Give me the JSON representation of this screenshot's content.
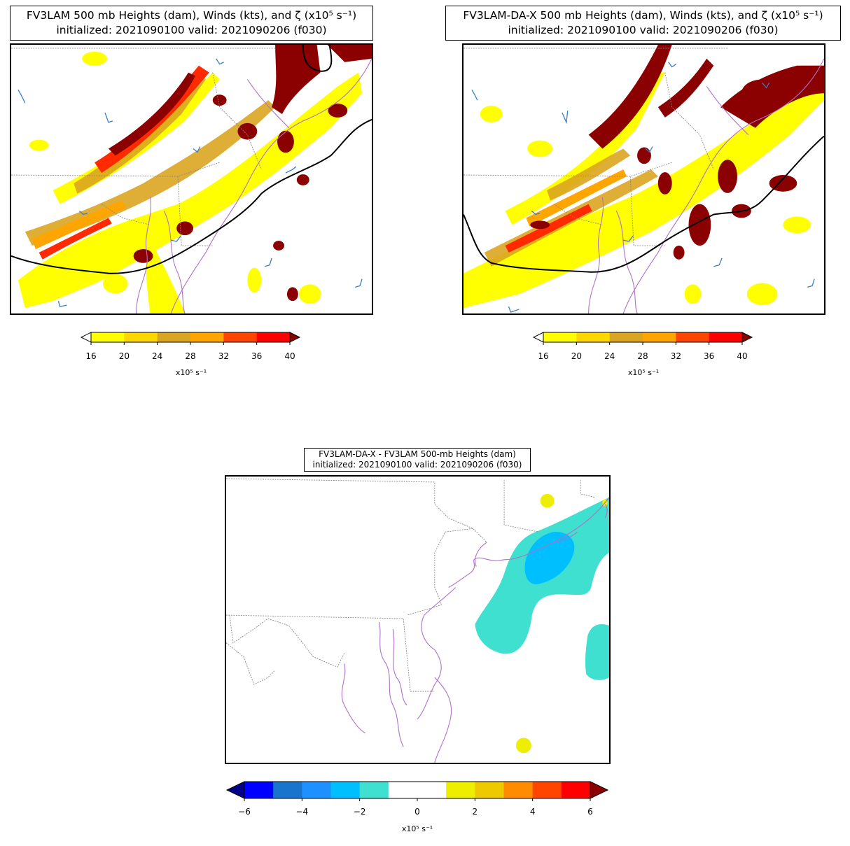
{
  "panels": [
    {
      "title_line1": "FV3LAM 500 mb Heights (dam), Winds (kts), and ζ (x10⁵ s⁻¹)",
      "title_line2": "initialized: 2021090100 valid: 2021090206 (f030)"
    },
    {
      "title_line1": "FV3LAM-DA-X 500 mb Heights (dam), Winds (kts), and ζ (x10⁵ s⁻¹)",
      "title_line2": "initialized: 2021090100 valid: 2021090206 (f030)"
    },
    {
      "title_line1": "FV3LAM-DA-X - FV3LAM 500-mb Heights (dam)",
      "title_line2": "initialized: 2021090100 valid: 2021090206 (f030)"
    }
  ],
  "vorticity_colorbar": {
    "ticks": [
      "16",
      "20",
      "24",
      "28",
      "32",
      "36",
      "40"
    ],
    "unit": "x10⁵ s⁻¹",
    "colors": [
      "#ffff00",
      "#ffd700",
      "#daa520",
      "#ffa500",
      "#ff4500",
      "#ff0000"
    ],
    "under_color": "#ffffff",
    "over_color": "#8b0000"
  },
  "diff_colorbar": {
    "ticks": [
      "−6",
      "−4",
      "−2",
      "0",
      "2",
      "4",
      "6"
    ],
    "unit": "x10⁵ s⁻¹",
    "colors": [
      "#0000ff",
      "#1874cd",
      "#1e90ff",
      "#00bfff",
      "#40e0d0",
      "#ffffff",
      "#ffffff",
      "#eeee00",
      "#eec900",
      "#ff8c00",
      "#ff4500",
      "#ff0000"
    ],
    "under_color": "#00008b",
    "over_color": "#8b0000"
  },
  "map_colors": {
    "coast": "#b070c8",
    "state_border": "#888888",
    "height_contour": "#000000",
    "wind_barb": "#3a7dbf",
    "vort_dark": "#8b0000",
    "vort_red": "#ff2a00",
    "vort_orange": "#ffa500",
    "vort_gold": "#daa520",
    "vort_yellow": "#ffff00",
    "diff_cyan": "#40e0d0",
    "diff_blue": "#00bfff",
    "diff_yellow": "#eeee00"
  }
}
